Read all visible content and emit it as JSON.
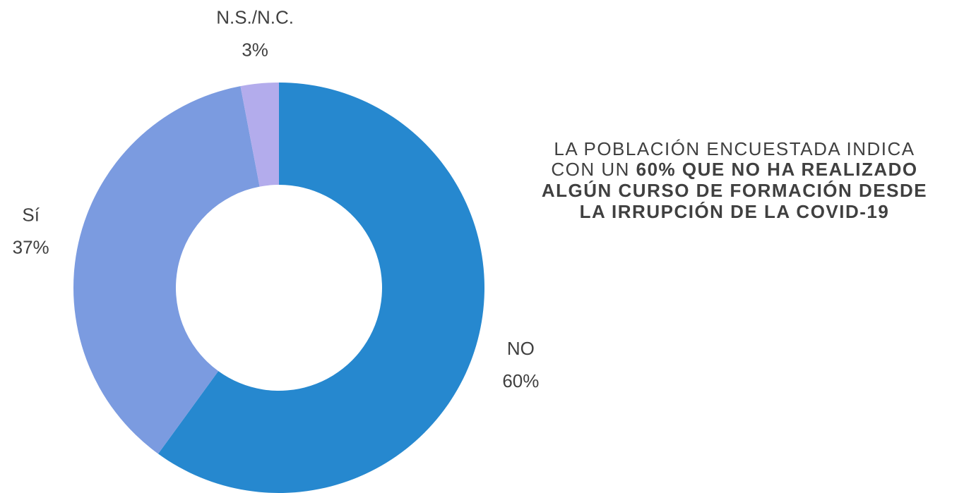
{
  "chart_data": {
    "type": "donut",
    "categories": [
      "NO",
      "Sí",
      "N.S./N.C."
    ],
    "values": [
      60,
      37,
      3
    ],
    "value_labels": [
      "60%",
      "37%",
      "3%"
    ],
    "colors": [
      "#2688cf",
      "#7b9be0",
      "#b3acec"
    ],
    "annotation": [
      "LA POBLACIÓN ENCUESTADA INDICA",
      "CON UN",
      "60% QUE NO HA REALIZADO",
      "ALGÚN CURSO DE FORMACIÓN DESDE",
      "LA IRRUPCIÓN DE LA COVID-19"
    ]
  }
}
